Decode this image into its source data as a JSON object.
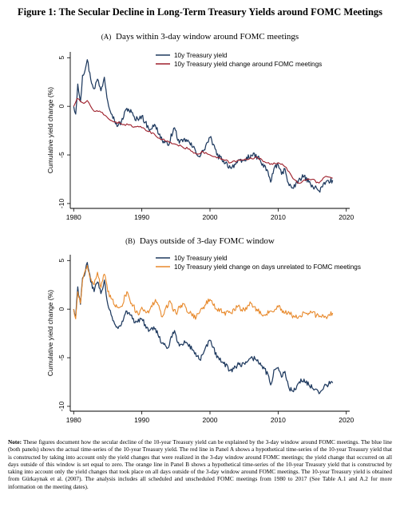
{
  "figure": {
    "title": "Figure 1: The Secular Decline in Long-Term Treasury Yields around FOMC Meetings"
  },
  "colors": {
    "blue": "#1f3a5f",
    "red": "#9e1f2b",
    "orange": "#e8892b",
    "axis": "#000000"
  },
  "chart_data": [
    {
      "type": "line",
      "panel_tag": "(A)",
      "title": "Days within 3-day window around FOMC meetings",
      "xlabel": "",
      "ylabel": "Cumulative yield change (%)",
      "xlim": [
        1979.5,
        2020.5
      ],
      "ylim": [
        -10.5,
        5.6
      ],
      "xticks": [
        1980,
        1990,
        2000,
        2010,
        2020
      ],
      "yticks": [
        5,
        0,
        -5,
        -10
      ],
      "legend_position": "top-right",
      "series": [
        {
          "name": "10y Treasury yield",
          "color": "blue",
          "x": [
            1980.0,
            1980.3,
            1980.6,
            1981.0,
            1981.3,
            1981.7,
            1982.0,
            1982.5,
            1983.0,
            1983.5,
            1984.0,
            1984.5,
            1985.0,
            1986.0,
            1986.5,
            1987.0,
            1987.8,
            1988.5,
            1989.0,
            1990.0,
            1991.0,
            1992.0,
            1993.0,
            1993.8,
            1994.8,
            1995.5,
            1996.5,
            1997.5,
            1998.5,
            1999.0,
            2000.0,
            2000.5,
            2001.0,
            2002.0,
            2003.0,
            2004.0,
            2005.0,
            2006.0,
            2007.0,
            2007.5,
            2008.5,
            2008.9,
            2009.5,
            2010.0,
            2010.5,
            2011.0,
            2011.5,
            2012.0,
            2012.5,
            2013.0,
            2013.8,
            2014.5,
            2015.0,
            2016.0,
            2016.5,
            2017.0,
            2018.0
          ],
          "y": [
            0.0,
            -0.8,
            2.3,
            0.5,
            3.2,
            3.8,
            4.8,
            2.8,
            1.8,
            2.8,
            1.6,
            3.0,
            0.5,
            -1.5,
            -2.0,
            -1.6,
            -0.2,
            -0.6,
            -1.4,
            -1.0,
            -2.3,
            -2.0,
            -3.5,
            -4.0,
            -2.2,
            -3.8,
            -3.4,
            -4.2,
            -5.2,
            -4.6,
            -3.2,
            -3.9,
            -5.0,
            -5.6,
            -6.3,
            -5.8,
            -5.6,
            -5.0,
            -5.2,
            -5.8,
            -6.7,
            -7.8,
            -6.2,
            -6.0,
            -7.0,
            -6.4,
            -7.9,
            -8.4,
            -8.3,
            -7.6,
            -7.2,
            -7.8,
            -8.1,
            -8.7,
            -8.3,
            -7.8,
            -7.6
          ]
        },
        {
          "name": "10y Treasury yield change around FOMC meetings",
          "color": "red",
          "x": [
            1980.0,
            1980.5,
            1981.0,
            1981.5,
            1982.0,
            1982.5,
            1983.0,
            1984.0,
            1985.0,
            1986.0,
            1987.0,
            1988.0,
            1989.0,
            1990.0,
            1991.0,
            1992.0,
            1993.0,
            1994.0,
            1995.0,
            1996.0,
            1997.0,
            1998.0,
            1999.0,
            2000.0,
            2001.0,
            2002.0,
            2003.0,
            2004.0,
            2005.0,
            2006.0,
            2007.0,
            2008.0,
            2009.0,
            2010.0,
            2011.0,
            2012.0,
            2013.0,
            2014.0,
            2015.0,
            2016.0,
            2017.0,
            2018.0
          ],
          "y": [
            0.0,
            0.8,
            0.5,
            0.3,
            0.6,
            0.0,
            -0.5,
            -0.6,
            -1.2,
            -1.6,
            -1.8,
            -1.9,
            -2.1,
            -2.2,
            -2.6,
            -3.0,
            -3.4,
            -3.7,
            -3.9,
            -4.2,
            -4.4,
            -4.9,
            -4.7,
            -5.0,
            -5.3,
            -5.5,
            -5.8,
            -5.6,
            -5.5,
            -5.3,
            -5.3,
            -5.7,
            -5.9,
            -5.8,
            -6.2,
            -7.2,
            -7.9,
            -7.6,
            -7.5,
            -7.9,
            -7.2,
            -7.4
          ]
        }
      ]
    },
    {
      "type": "line",
      "panel_tag": "(B)",
      "title": "Days outside of 3-day FOMC window",
      "xlabel": "",
      "ylabel": "Cumulative yield change (%)",
      "xlim": [
        1979.5,
        2020.5
      ],
      "ylim": [
        -10.5,
        5.6
      ],
      "xticks": [
        1980,
        1990,
        2000,
        2010,
        2020
      ],
      "yticks": [
        5,
        0,
        -5,
        -10
      ],
      "legend_position": "top-right",
      "series": [
        {
          "name": "10y Treasury yield",
          "color": "blue",
          "x": [
            1980.0,
            1980.3,
            1980.6,
            1981.0,
            1981.3,
            1981.7,
            1982.0,
            1982.5,
            1983.0,
            1983.5,
            1984.0,
            1984.5,
            1985.0,
            1986.0,
            1986.5,
            1987.0,
            1987.8,
            1988.5,
            1989.0,
            1990.0,
            1991.0,
            1992.0,
            1993.0,
            1993.8,
            1994.8,
            1995.5,
            1996.5,
            1997.5,
            1998.5,
            1999.0,
            2000.0,
            2000.5,
            2001.0,
            2002.0,
            2003.0,
            2004.0,
            2005.0,
            2006.0,
            2007.0,
            2007.5,
            2008.5,
            2008.9,
            2009.5,
            2010.0,
            2010.5,
            2011.0,
            2011.5,
            2012.0,
            2012.5,
            2013.0,
            2013.8,
            2014.5,
            2015.0,
            2016.0,
            2016.5,
            2017.0,
            2018.0
          ],
          "y": [
            0.0,
            -0.8,
            2.3,
            0.5,
            3.2,
            3.8,
            4.8,
            2.8,
            1.8,
            2.8,
            1.6,
            3.0,
            0.5,
            -1.5,
            -2.0,
            -1.6,
            -0.2,
            -0.6,
            -1.4,
            -1.0,
            -2.3,
            -2.0,
            -3.5,
            -4.0,
            -2.2,
            -3.8,
            -3.4,
            -4.2,
            -5.2,
            -4.6,
            -3.2,
            -3.9,
            -5.0,
            -5.6,
            -6.3,
            -5.8,
            -5.6,
            -5.0,
            -5.2,
            -5.8,
            -6.7,
            -7.8,
            -6.2,
            -6.0,
            -7.0,
            -6.4,
            -7.9,
            -8.4,
            -8.3,
            -7.6,
            -7.2,
            -7.8,
            -8.1,
            -8.7,
            -8.3,
            -7.8,
            -7.6
          ]
        },
        {
          "name": "10y Treasury yield change on days unrelated to FOMC meetings",
          "color": "orange",
          "x": [
            1980.0,
            1980.3,
            1980.6,
            1981.0,
            1981.3,
            1981.7,
            1982.0,
            1982.5,
            1983.0,
            1983.5,
            1984.0,
            1984.5,
            1985.0,
            1986.0,
            1987.0,
            1987.8,
            1988.5,
            1989.5,
            1990.0,
            1991.0,
            1992.0,
            1993.0,
            1994.0,
            1995.0,
            1996.0,
            1997.0,
            1998.0,
            1999.0,
            2000.0,
            2001.0,
            2002.0,
            2003.0,
            2004.0,
            2005.0,
            2006.0,
            2007.0,
            2008.0,
            2009.0,
            2010.0,
            2011.0,
            2012.0,
            2013.0,
            2014.0,
            2015.0,
            2016.0,
            2017.0,
            2018.0
          ],
          "y": [
            0.0,
            -1.0,
            1.8,
            0.6,
            3.0,
            4.0,
            4.5,
            3.2,
            2.5,
            3.8,
            2.2,
            3.6,
            1.8,
            0.4,
            0.3,
            1.8,
            0.6,
            -0.6,
            0.2,
            -0.4,
            1.0,
            -0.8,
            0.8,
            -0.4,
            0.6,
            -0.4,
            -0.8,
            0.2,
            1.0,
            0.0,
            -0.4,
            -0.4,
            0.2,
            0.0,
            0.6,
            -0.2,
            -0.6,
            -0.2,
            0.2,
            -0.4,
            -0.6,
            -0.8,
            -0.4,
            -0.4,
            -0.8,
            -0.8,
            -0.4
          ]
        }
      ]
    }
  ],
  "note": {
    "label": "Note:",
    "text": "These figures document how the secular decline of the 10-year Treasury yield can be explained by the 3-day window around FOMC meetings. The blue line (both panels) shows the actual time-series of the 10-year Treasury yield. The red line in Panel A shows a hypothetical time-series of the 10-year Treasury yield that is constructed by taking into account only the yield changes that were realized in the 3-day window around FOMC meetings; the yield change that occurred on all days outside of this window is set equal to zero. The orange line in Panel B shows a hypothetical time-series of the 10-year Treasury yield that is constructed by taking into account only the yield changes that took place on all days outside of the 3-day window around FOMC meetings. The 10-year Treasury yield is obtained from Gürkaynak et al. (2007). The analysis includes all scheduled and unscheduled FOMC meetings from 1980 to 2017 (See Table A.1 and A.2 for more information on the meeting dates)."
  }
}
